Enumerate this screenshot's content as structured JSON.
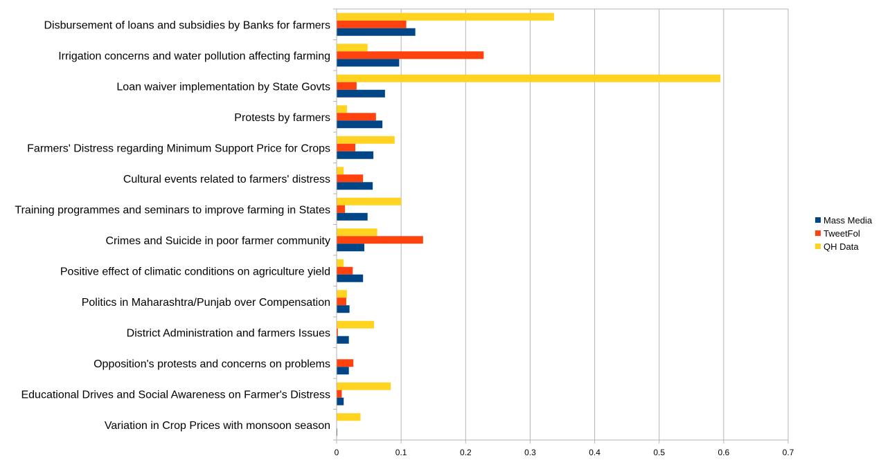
{
  "chart_data": {
    "type": "bar",
    "orientation": "horizontal",
    "title": "",
    "xlabel": "",
    "ylabel": "",
    "xlim": [
      0,
      0.7
    ],
    "ticks": [
      "0",
      "0.1",
      "0.2",
      "0.3",
      "0.4",
      "0.5",
      "0.6",
      "0.7"
    ],
    "grid": true,
    "legend_position": "right",
    "categories": [
      "Disbursement of loans and subsidies by Banks for farmers",
      "Irrigation concerns and water pollution affecting farming",
      "Loan waiver implementation by State Govts",
      "Protests by farmers",
      "Farmers' Distress regarding Minimum Support Price for Crops",
      "Cultural events related to farmers' distress",
      "Training programmes and seminars to improve farming in States",
      "Crimes and Suicide in poor farmer community",
      "Positive effect of climatic conditions on agriculture yield",
      "Politics in Maharashtra/Punjab over Compensation",
      "District Administration and farmers Issues",
      "Opposition's protests and concerns on problems",
      "Educational Drives and Social Awareness on Farmer's Distress",
      "Variation in Crop Prices with monsoon season"
    ],
    "series": [
      {
        "name": "Mass Media",
        "color": "#004586",
        "values": [
          0.122,
          0.097,
          0.075,
          0.071,
          0.057,
          0.056,
          0.048,
          0.043,
          0.041,
          0.02,
          0.019,
          0.019,
          0.011,
          0.001
        ]
      },
      {
        "name": "TweetFol",
        "color": "#ff420e",
        "values": [
          0.108,
          0.228,
          0.031,
          0.061,
          0.029,
          0.041,
          0.013,
          0.134,
          0.025,
          0.015,
          0.002,
          0.026,
          0.008,
          0.0
        ]
      },
      {
        "name": "QH Data",
        "color": "#ffd320",
        "values": [
          0.337,
          0.048,
          0.595,
          0.016,
          0.09,
          0.011,
          0.1,
          0.063,
          0.011,
          0.016,
          0.058,
          0.0,
          0.084,
          0.037
        ]
      }
    ]
  }
}
